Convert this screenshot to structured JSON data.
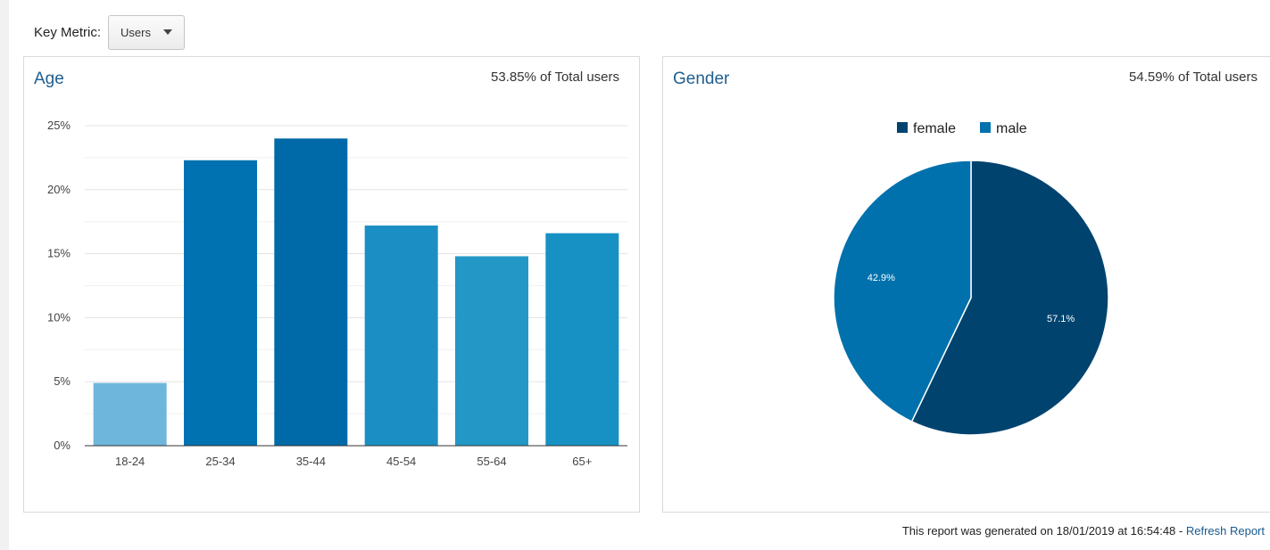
{
  "toolbar": {
    "key_metric_label": "Key Metric:",
    "metric_value": "Users"
  },
  "age_panel": {
    "title": "Age",
    "total": "53.85% of Total users"
  },
  "gender_panel": {
    "title": "Gender",
    "total": "54.59% of Total users"
  },
  "footer": {
    "generated_text": "This report was generated on 18/01/2019 at 16:54:48 - ",
    "refresh_label": "Refresh Report"
  },
  "chart_data": [
    {
      "type": "bar",
      "title": "Age",
      "categories": [
        "18-24",
        "25-34",
        "35-44",
        "45-54",
        "55-64",
        "65+"
      ],
      "values": [
        4.9,
        22.3,
        24.0,
        17.2,
        14.8,
        16.6
      ],
      "colors": [
        "#6fb6dc",
        "#0072b1",
        "#0069a8",
        "#1b8fc4",
        "#2398c6",
        "#1791c4"
      ],
      "yticks": [
        "0%",
        "5%",
        "10%",
        "15%",
        "20%",
        "25%"
      ],
      "ylim": [
        0,
        25
      ],
      "grid": true
    },
    {
      "type": "pie",
      "title": "Gender",
      "legend": [
        "female",
        "male"
      ],
      "values": [
        57.1,
        42.9
      ],
      "labels": [
        "57.1%",
        "42.9%"
      ],
      "colors": [
        "#00436f",
        "#0071ad"
      ],
      "legend_position": "top"
    }
  ]
}
